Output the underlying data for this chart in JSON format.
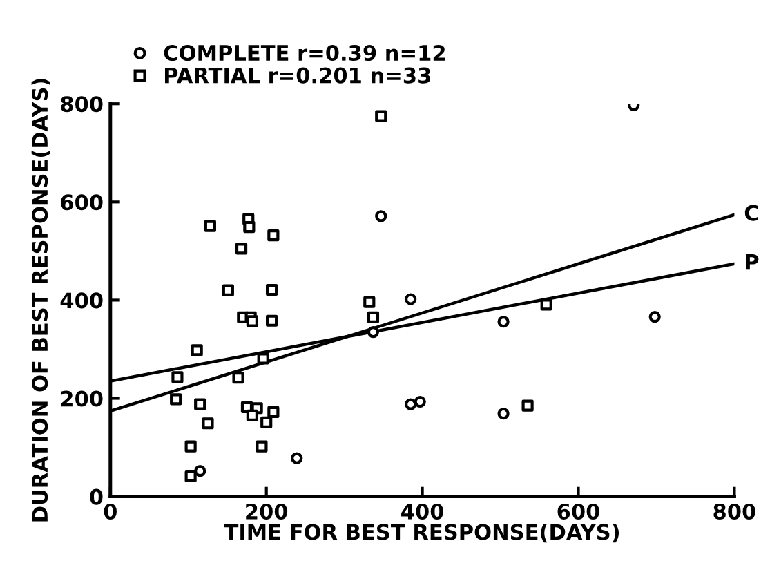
{
  "chart_data": {
    "type": "scatter",
    "xlabel": "TIME FOR BEST RESPONSE(DAYS)",
    "ylabel": "DURATION OF BEST RESPONSE(DAYS)",
    "xlim": [
      0,
      800
    ],
    "ylim": [
      0,
      800
    ],
    "xticks": [
      0,
      200,
      400,
      600,
      800
    ],
    "yticks": [
      0,
      200,
      400,
      600,
      800
    ],
    "grid": false,
    "legend": "top left",
    "series": [
      {
        "name": "COMPLETE r=0.39 n=12",
        "color": "#000000",
        "marker": "circle",
        "x": [
          347,
          239,
          115,
          385,
          385,
          397,
          671,
          504,
          698,
          504,
          337
        ],
        "values": [
          571,
          78,
          52,
          402,
          188,
          193,
          797,
          356,
          366,
          169,
          335
        ]
      },
      {
        "name": "PARTIAL r=0.201 n=33",
        "color": "#000000",
        "marker": "square",
        "x": [
          347,
          128,
          177,
          178,
          209,
          168,
          151,
          207,
          332,
          170,
          180,
          182,
          207,
          337,
          111,
          196,
          86,
          164,
          84,
          115,
          175,
          188,
          209,
          182,
          200,
          125,
          103,
          194,
          103,
          559,
          535
        ],
        "values": [
          775,
          551,
          565,
          549,
          532,
          505,
          420,
          421,
          396,
          365,
          365,
          357,
          358,
          365,
          298,
          281,
          243,
          242,
          198,
          188,
          182,
          180,
          172,
          165,
          151,
          149,
          102,
          102,
          41,
          391,
          185
        ]
      },
      {
        "type": "line",
        "color": "#000000",
        "marker": "none",
        "x": [
          0,
          800
        ],
        "values": [
          174,
          574
        ]
      },
      {
        "type": "line",
        "color": "#000000",
        "marker": "none",
        "x": [
          0,
          800
        ],
        "values": [
          235,
          474
        ]
      }
    ],
    "annotations": [
      {
        "text": "C",
        "x": 800,
        "y": 574
      },
      {
        "text": "P",
        "x": 800,
        "y": 474
      }
    ]
  }
}
